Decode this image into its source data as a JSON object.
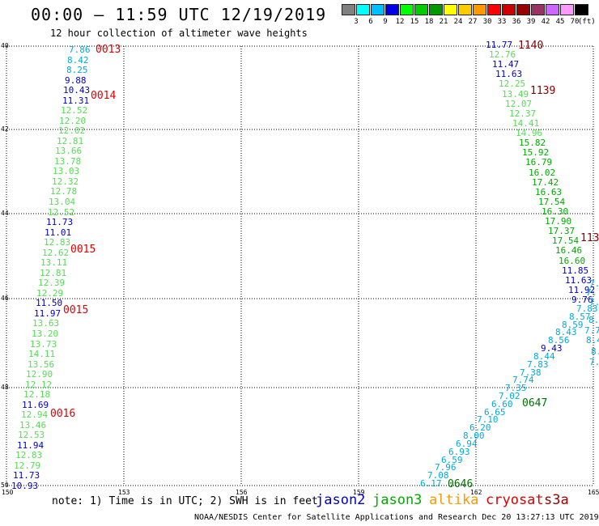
{
  "header": {
    "title": "00:00 – 11:59 UTC 12/19/2019",
    "subtitle": "12 hour collection of altimeter wave heights"
  },
  "colorbar": {
    "colors": [
      "#808080",
      "#00ffff",
      "#00bfff",
      "#0000e6",
      "#00ff00",
      "#00cc00",
      "#009900",
      "#ffff00",
      "#ffcc00",
      "#ff9900",
      "#ff0000",
      "#cc0000",
      "#990000",
      "#993366",
      "#cc66ff",
      "#ff99ff",
      "#000000"
    ],
    "labels": [
      "3",
      "6",
      "9",
      "12",
      "15",
      "18",
      "21",
      "24",
      "27",
      "30",
      "33",
      "36",
      "39",
      "42",
      "45",
      "70"
    ],
    "unit": "(ft)"
  },
  "map": {
    "lon_ticks": [
      "150",
      "153",
      "156",
      "159",
      "162",
      "165"
    ],
    "lat_ticks": [
      "40",
      "42",
      "44",
      "46",
      "48",
      "50"
    ],
    "lon_range": [
      150,
      165
    ],
    "lat_range": [
      40,
      50
    ]
  },
  "times": [
    {
      "text": "0013",
      "color": "#e00000"
    },
    {
      "text": "0014",
      "color": "#e00000"
    },
    {
      "text": "0015",
      "color": "#e00000"
    },
    {
      "text": "0015",
      "color": "#e00000"
    },
    {
      "text": "0016",
      "color": "#e00000"
    },
    {
      "text": "1140",
      "color": "#800000"
    },
    {
      "text": "1139",
      "color": "#800000"
    },
    {
      "text": "113",
      "color": "#800000"
    },
    {
      "text": "0647",
      "color": "#007000"
    },
    {
      "text": "0646",
      "color": "#007000"
    }
  ],
  "track_left": [
    {
      "v": "7.86",
      "c": "#00aadd"
    },
    {
      "v": "8.42",
      "c": "#00aadd"
    },
    {
      "v": "8.25",
      "c": "#00aadd"
    },
    {
      "v": "9.88",
      "c": "#0000cc"
    },
    {
      "v": "10.43",
      "c": "#0000cc"
    },
    {
      "v": "11.31",
      "c": "#0000cc"
    },
    {
      "v": "12.52",
      "c": "#55dd55"
    },
    {
      "v": "12.20",
      "c": "#55dd55"
    },
    {
      "v": "12.02",
      "c": "#55dd55"
    },
    {
      "v": "12.81",
      "c": "#55dd55"
    },
    {
      "v": "13.66",
      "c": "#55dd55"
    },
    {
      "v": "13.78",
      "c": "#55dd55"
    },
    {
      "v": "13.03",
      "c": "#55dd55"
    },
    {
      "v": "12.32",
      "c": "#55dd55"
    },
    {
      "v": "12.78",
      "c": "#55dd55"
    },
    {
      "v": "13.04",
      "c": "#55dd55"
    },
    {
      "v": "12.52",
      "c": "#55dd55"
    },
    {
      "v": "11.73",
      "c": "#0000cc"
    },
    {
      "v": "11.01",
      "c": "#0000cc"
    },
    {
      "v": "12.83",
      "c": "#55dd55"
    },
    {
      "v": "12.62",
      "c": "#55dd55"
    },
    {
      "v": "13.11",
      "c": "#55dd55"
    },
    {
      "v": "12.81",
      "c": "#55dd55"
    },
    {
      "v": "12.39",
      "c": "#55dd55"
    },
    {
      "v": "12.29",
      "c": "#55dd55"
    },
    {
      "v": "11.50",
      "c": "#0000cc"
    },
    {
      "v": "11.97",
      "c": "#0000cc"
    },
    {
      "v": "13.63",
      "c": "#55dd55"
    },
    {
      "v": "13.20",
      "c": "#55dd55"
    },
    {
      "v": "13.73",
      "c": "#55dd55"
    },
    {
      "v": "14.11",
      "c": "#55dd55"
    },
    {
      "v": "13.56",
      "c": "#55dd55"
    },
    {
      "v": "12.90",
      "c": "#55dd55"
    },
    {
      "v": "12.12",
      "c": "#55dd55"
    },
    {
      "v": "12.18",
      "c": "#55dd55"
    },
    {
      "v": "11.69",
      "c": "#0000cc"
    },
    {
      "v": "12.94",
      "c": "#55dd55"
    },
    {
      "v": "13.46",
      "c": "#55dd55"
    },
    {
      "v": "12.53",
      "c": "#55dd55"
    },
    {
      "v": "11.94",
      "c": "#0000cc"
    },
    {
      "v": "12.83",
      "c": "#55dd55"
    },
    {
      "v": "12.79",
      "c": "#55dd55"
    },
    {
      "v": "11.73",
      "c": "#0000cc"
    },
    {
      "v": "10.93",
      "c": "#0000cc"
    }
  ],
  "track_right_top": [
    {
      "v": "11.77",
      "c": "#0000cc"
    },
    {
      "v": "12.76",
      "c": "#55dd55"
    },
    {
      "v": "11.47",
      "c": "#0000cc"
    },
    {
      "v": "11.63",
      "c": "#0000cc"
    },
    {
      "v": "12.25",
      "c": "#55dd55"
    },
    {
      "v": "13.49",
      "c": "#55dd55"
    },
    {
      "v": "12.07",
      "c": "#55dd55"
    },
    {
      "v": "12.37",
      "c": "#55dd55"
    },
    {
      "v": "14.41",
      "c": "#55dd55"
    },
    {
      "v": "14.96",
      "c": "#55dd55"
    },
    {
      "v": "15.82",
      "c": "#00aa00"
    },
    {
      "v": "15.92",
      "c": "#00aa00"
    },
    {
      "v": "16.79",
      "c": "#00aa00"
    },
    {
      "v": "16.02",
      "c": "#00aa00"
    },
    {
      "v": "17.42",
      "c": "#00aa00"
    },
    {
      "v": "16.63",
      "c": "#00aa00"
    },
    {
      "v": "17.54",
      "c": "#00aa00"
    },
    {
      "v": "16.30",
      "c": "#00aa00"
    },
    {
      "v": "17.90",
      "c": "#00aa00"
    },
    {
      "v": "17.37",
      "c": "#00aa00"
    },
    {
      "v": "17.54",
      "c": "#00aa00"
    },
    {
      "v": "16.46",
      "c": "#00aa00"
    },
    {
      "v": "16.60",
      "c": "#00aa00"
    },
    {
      "v": "11.85",
      "c": "#0000cc"
    },
    {
      "v": "11.63",
      "c": "#0000cc"
    },
    {
      "v": "11.92",
      "c": "#0000cc"
    },
    {
      "v": "9.76",
      "c": "#0000cc"
    }
  ],
  "track_right_bottom": [
    {
      "v": "7.83",
      "c": "#00aadd"
    },
    {
      "v": "8.57",
      "c": "#00aadd"
    },
    {
      "v": "8.59",
      "c": "#00aadd"
    },
    {
      "v": "8.43",
      "c": "#00aadd"
    },
    {
      "v": "8.56",
      "c": "#00aadd"
    },
    {
      "v": "9.43",
      "c": "#0000cc"
    },
    {
      "v": "8.44",
      "c": "#00aadd"
    },
    {
      "v": "7.83",
      "c": "#00aadd"
    },
    {
      "v": "7.38",
      "c": "#00aadd"
    },
    {
      "v": "7.74",
      "c": "#00aadd"
    },
    {
      "v": "7.35",
      "c": "#00aadd"
    },
    {
      "v": "7.02",
      "c": "#00aadd"
    },
    {
      "v": "6.60",
      "c": "#00aadd"
    },
    {
      "v": "6.65",
      "c": "#00aadd"
    },
    {
      "v": "7.10",
      "c": "#00aadd"
    },
    {
      "v": "6.20",
      "c": "#00aadd"
    },
    {
      "v": "8.00",
      "c": "#00aadd"
    },
    {
      "v": "6.94",
      "c": "#00aadd"
    },
    {
      "v": "6.93",
      "c": "#00aadd"
    },
    {
      "v": "6.59",
      "c": "#00aadd"
    },
    {
      "v": "7.96",
      "c": "#00aadd"
    },
    {
      "v": "7.08",
      "c": "#00aadd"
    },
    {
      "v": "6.17",
      "c": "#00aadd"
    }
  ],
  "track_edge": [
    {
      "v": "7.",
      "c": "#00aadd"
    },
    {
      "v": "7.",
      "c": "#00aadd"
    },
    {
      "v": "7.83",
      "c": "#00aadd"
    },
    {
      "v": "8.43",
      "c": "#00aadd"
    },
    {
      "v": "7.70",
      "c": "#00aadd"
    },
    {
      "v": "8.4",
      "c": "#00aadd"
    },
    {
      "v": "8.",
      "c": "#00aadd"
    },
    {
      "v": "7.",
      "c": "#00aadd"
    }
  ],
  "legend": {
    "note": "note: 1) Time is in UTC; 2) SWH is in feet",
    "satellites": [
      {
        "name": "jason2",
        "color": "#0000cc"
      },
      {
        "name": "jason3",
        "color": "#00aa00"
      },
      {
        "name": "altika",
        "color": "#ff9900"
      },
      {
        "name": "cryosat",
        "color": "#dd0000"
      },
      {
        "name": "s3a",
        "color": "#990000"
      }
    ]
  },
  "footer": "NOAA/NESDIS Center for Satellite Applications and Research    Dec 20 13:27:13 UTC 2019"
}
